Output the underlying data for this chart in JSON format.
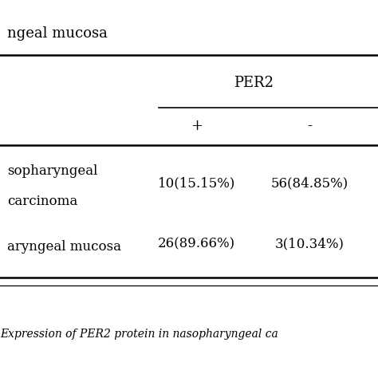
{
  "title_text": "ngeal mucosa",
  "caption": "Expression of PER2 protein in nasopharyngeal ca",
  "header_group": "PER2",
  "subheaders": [
    "+",
    "-"
  ],
  "rows": [
    {
      "label_line1": "sopharyngeal",
      "label_line2": "carcinoma",
      "col1": "10(15.15%)",
      "col2": "56(84.85%)"
    },
    {
      "label_line1": "aryngeal mucosa",
      "label_line2": "",
      "col1": "26(89.66%)",
      "col2": "3(10.34%)"
    }
  ],
  "background_color": "#ffffff",
  "text_color": "#000000",
  "font_size_title": 13,
  "font_size_header": 13,
  "font_size_data": 12,
  "font_size_caption": 10
}
